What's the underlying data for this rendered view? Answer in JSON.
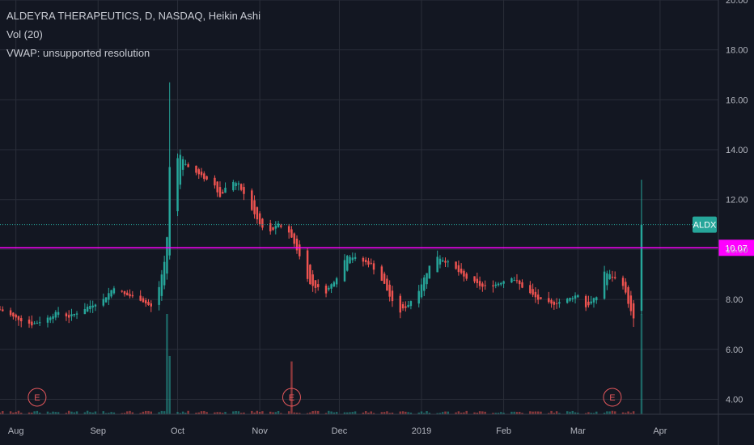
{
  "indicators": [
    "Vol (20)",
    "VWAP: unsupported resolution"
  ],
  "colors": {
    "background": "#131722",
    "up": "#26a69a",
    "down": "#ef5350",
    "grid": "#2a2e39",
    "level_line": "#ff00ff",
    "last_price_line": "#26a69a",
    "axis_text": "#b2b5be"
  },
  "chart_data": {
    "type": "candlestick",
    "title": "ALDEYRA THERAPEUTICS, D, NASDAQ, Heikin Ashi",
    "symbol_tag": "ALDX",
    "last_price": 11.0,
    "horizontal_level": {
      "value": 10.07,
      "label": "10.07"
    },
    "y_axis": {
      "range": [
        3.4,
        20.0
      ],
      "ticks": [
        "4.00",
        "6.00",
        "8.00",
        "10.00",
        "12.00",
        "14.00",
        "16.00",
        "18.00",
        "20.00"
      ]
    },
    "x_axis": {
      "range": [
        "2018-07-26",
        "2019-04-23"
      ],
      "ticks": [
        {
          "date": "2018-08-01",
          "label": "Aug"
        },
        {
          "date": "2018-09-01",
          "label": "Sep"
        },
        {
          "date": "2018-10-01",
          "label": "Oct"
        },
        {
          "date": "2018-11-01",
          "label": "Nov"
        },
        {
          "date": "2018-12-01",
          "label": "Dec"
        },
        {
          "date": "2019-01-01",
          "label": "2019"
        },
        {
          "date": "2019-02-01",
          "label": "Feb"
        },
        {
          "date": "2019-03-01",
          "label": "Mar"
        },
        {
          "date": "2019-04-01",
          "label": "Apr"
        }
      ]
    },
    "earnings": [
      {
        "date": "2018-08-09",
        "label": "E"
      },
      {
        "date": "2018-11-13",
        "label": "E"
      },
      {
        "date": "2019-03-14",
        "label": "E"
      }
    ],
    "volume_scale_max": 7.4,
    "close_path": [
      [
        "2018-07-26",
        7.6
      ],
      [
        "2018-07-31",
        7.3
      ],
      [
        "2018-08-07",
        7.0
      ],
      [
        "2018-08-12",
        7.2
      ],
      [
        "2018-08-17",
        7.5
      ],
      [
        "2018-08-21",
        7.3
      ],
      [
        "2018-08-28",
        7.7
      ],
      [
        "2018-09-03",
        8.0
      ],
      [
        "2018-09-07",
        8.5
      ],
      [
        "2018-09-11",
        8.2
      ],
      [
        "2018-09-17",
        8.0
      ],
      [
        "2018-09-21",
        7.7
      ],
      [
        "2018-09-24",
        8.5
      ],
      [
        "2018-09-26",
        9.5
      ],
      [
        "2018-09-27",
        10.5
      ],
      [
        "2018-09-28",
        13.3
      ],
      [
        "2018-10-02",
        13.8
      ],
      [
        "2018-10-05",
        13.3
      ],
      [
        "2018-10-09",
        13.0
      ],
      [
        "2018-10-15",
        12.6
      ],
      [
        "2018-10-17",
        12.1
      ],
      [
        "2018-10-21",
        12.8
      ],
      [
        "2018-10-24",
        12.6
      ],
      [
        "2018-10-28",
        11.8
      ],
      [
        "2018-11-01",
        11.0
      ],
      [
        "2018-11-04",
        10.6
      ],
      [
        "2018-11-08",
        11.0
      ],
      [
        "2018-11-12",
        10.7
      ],
      [
        "2018-11-15",
        10.0
      ],
      [
        "2018-11-20",
        8.6
      ],
      [
        "2018-11-26",
        8.3
      ],
      [
        "2018-11-30",
        8.9
      ],
      [
        "2018-12-04",
        9.8
      ],
      [
        "2018-12-08",
        9.6
      ],
      [
        "2018-12-13",
        9.4
      ],
      [
        "2018-12-18",
        8.6
      ],
      [
        "2018-12-23",
        7.4
      ],
      [
        "2018-12-27",
        7.8
      ],
      [
        "2018-12-31",
        8.4
      ],
      [
        "2019-01-06",
        9.8
      ],
      [
        "2019-01-12",
        9.4
      ],
      [
        "2019-01-17",
        8.9
      ],
      [
        "2019-01-24",
        8.5
      ],
      [
        "2019-01-29",
        8.6
      ],
      [
        "2019-02-04",
        8.9
      ],
      [
        "2019-02-09",
        8.4
      ],
      [
        "2019-02-14",
        8.0
      ],
      [
        "2019-02-19",
        7.8
      ],
      [
        "2019-02-25",
        8.0
      ],
      [
        "2019-03-01",
        8.2
      ],
      [
        "2019-03-04",
        7.7
      ],
      [
        "2019-03-08",
        8.1
      ],
      [
        "2019-03-10",
        9.2
      ],
      [
        "2019-03-14",
        8.9
      ],
      [
        "2019-03-18",
        8.6
      ],
      [
        "2019-03-21",
        7.5
      ],
      [
        "2019-03-22",
        7.2
      ],
      [
        "2019-03-25",
        11.0
      ]
    ],
    "volume_spikes": [
      [
        "2018-09-27",
        7.4
      ],
      [
        "2018-09-28",
        4.3
      ],
      [
        "2018-09-29",
        4.2
      ],
      [
        "2018-11-13",
        3.9
      ],
      [
        "2019-03-25",
        7.4
      ]
    ],
    "notable_wicks": [
      [
        "2018-09-28",
        16.7
      ],
      [
        "2019-03-25",
        12.8
      ],
      [
        "2019-03-22",
        6.9
      ]
    ]
  }
}
